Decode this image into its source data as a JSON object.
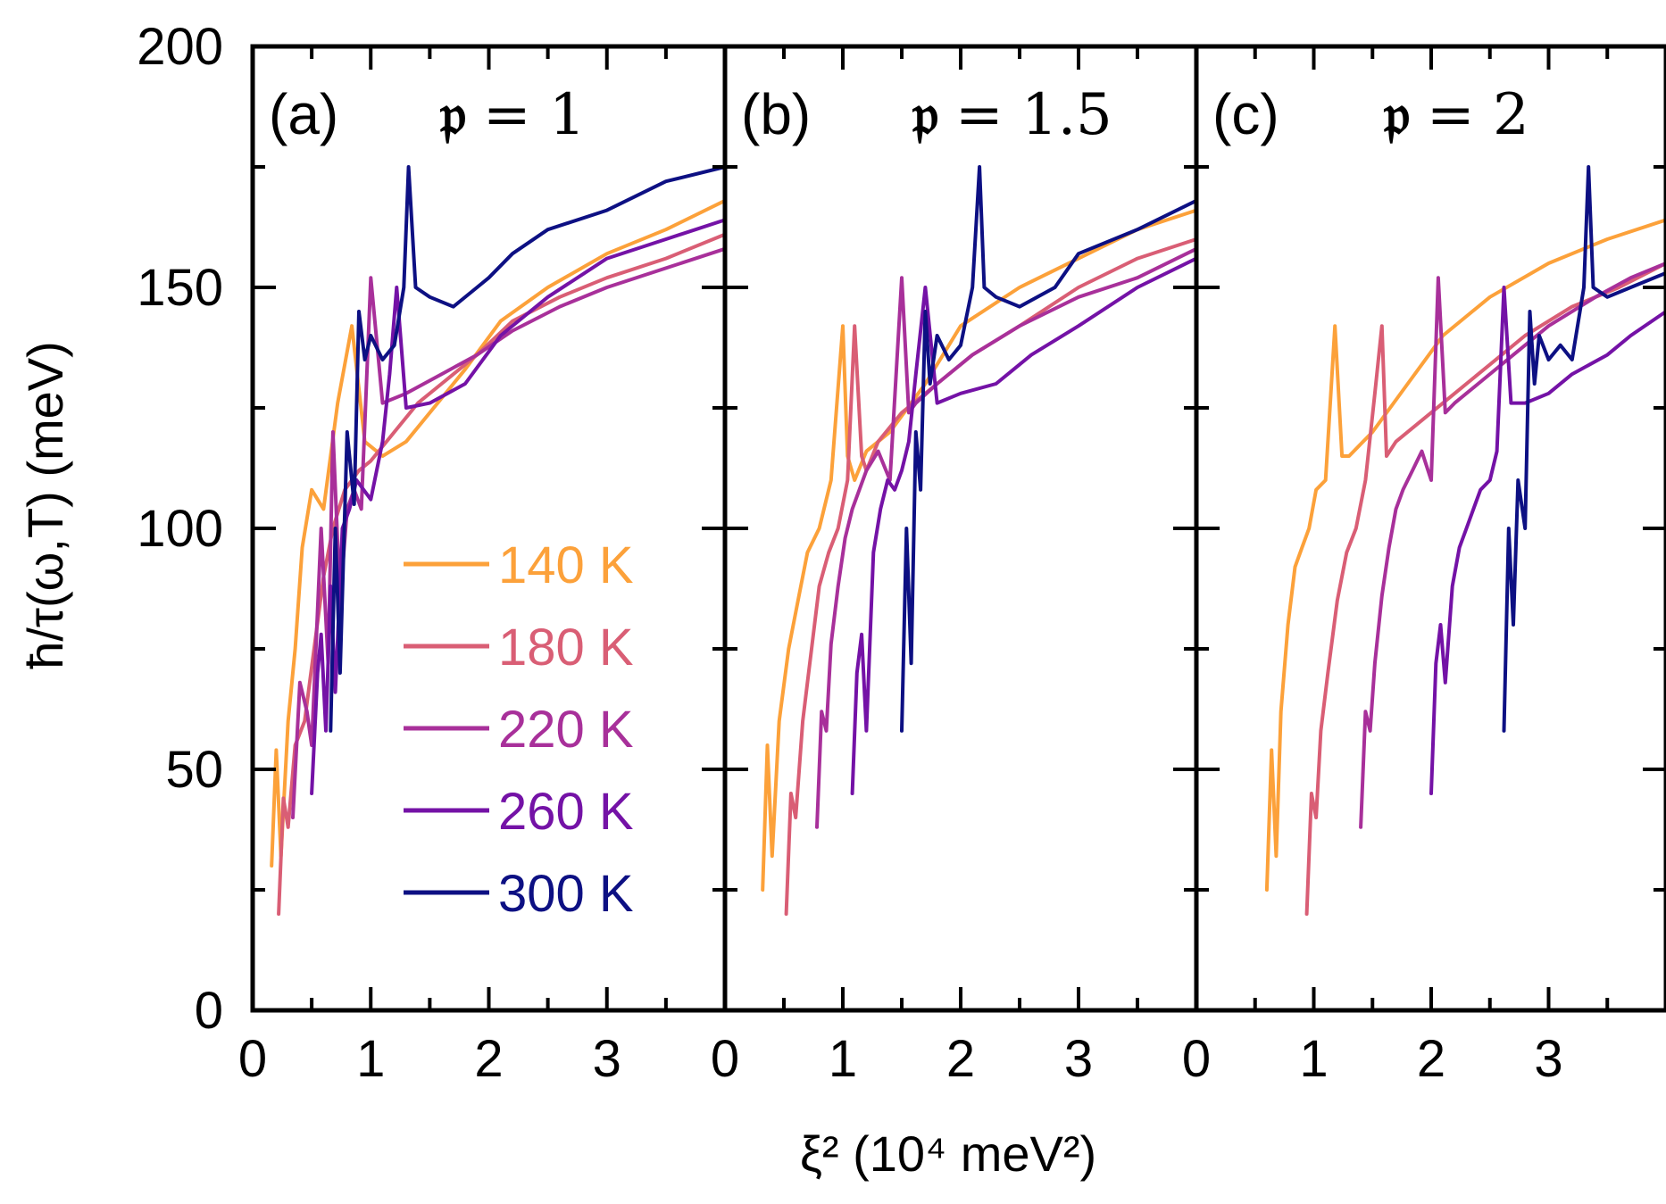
{
  "chart_data": {
    "type": "line",
    "ylabel": "ħ/τ(ω,T) (meV)",
    "xlabel": "ξ² (10⁴ meV²)",
    "ylim": [
      0,
      200
    ],
    "yticks": [
      "0",
      "50",
      "100",
      "150",
      "200"
    ],
    "xticks": [
      "0",
      "1",
      "2",
      "3"
    ],
    "xlim": [
      0,
      4
    ],
    "colors": {
      "140 K": "#fca13a",
      "180 K": "#d95e75",
      "220 K": "#a8309a",
      "260 K": "#7412a6",
      "300 K": "#0d1083"
    },
    "legend": [
      {
        "label": "140 K",
        "color": "#fca13a"
      },
      {
        "label": "180 K",
        "color": "#d95e75"
      },
      {
        "label": "220 K",
        "color": "#a8309a"
      },
      {
        "label": "260 K",
        "color": "#7412a6"
      },
      {
        "label": "300 K",
        "color": "#0d1083"
      }
    ],
    "panels": [
      {
        "label": "(a)",
        "p_symbol": "𝔭",
        "p_text": "= 1",
        "series": [
          {
            "name": "140 K",
            "x": [
              0.16,
              0.2,
              0.24,
              0.3,
              0.36,
              0.42,
              0.5,
              0.6,
              0.72,
              0.84,
              0.95,
              1.1,
              1.3,
              1.5,
              1.8,
              2.1,
              2.5,
              3.0,
              3.5,
              4.0
            ],
            "y": [
              30,
              54,
              32,
              60,
              75,
              96,
              108,
              104,
              126,
              142,
              118,
              115,
              118,
              124,
              133,
              143,
              150,
              157,
              162,
              168
            ]
          },
          {
            "name": "180 K",
            "x": [
              0.22,
              0.26,
              0.3,
              0.36,
              0.44,
              0.52,
              0.6,
              0.68,
              0.78,
              0.9,
              1.0,
              1.2,
              1.4,
              1.6,
              1.9,
              2.2,
              2.6,
              3.0,
              3.5,
              4.0
            ],
            "y": [
              20,
              44,
              38,
              55,
              60,
              75,
              90,
              100,
              108,
              112,
              114,
              120,
              126,
              130,
              136,
              143,
              148,
              152,
              156,
              161
            ]
          },
          {
            "name": "220 K",
            "x": [
              0.34,
              0.4,
              0.46,
              0.5,
              0.58,
              0.64,
              0.68,
              0.74,
              0.8,
              0.86,
              0.92,
              1.0,
              1.1,
              1.3,
              1.6,
              1.9,
              2.2,
              2.6,
              3.0,
              3.5,
              4.0
            ],
            "y": [
              40,
              68,
              62,
              55,
              100,
              72,
              120,
              85,
              104,
              108,
              104,
              152,
              126,
              128,
              132,
              136,
              141,
              146,
              150,
              154,
              158
            ]
          },
          {
            "name": "260 K",
            "x": [
              0.5,
              0.55,
              0.58,
              0.62,
              0.66,
              0.7,
              0.76,
              0.82,
              0.88,
              0.94,
              1.0,
              1.05,
              1.1,
              1.16,
              1.22,
              1.3,
              1.5,
              1.8,
              2.1,
              2.5,
              3.0,
              3.5,
              4.0
            ],
            "y": [
              45,
              70,
              78,
              58,
              88,
              66,
              100,
              104,
              110,
              108,
              106,
              112,
              118,
              132,
              150,
              125,
              126,
              130,
              140,
              148,
              156,
              160,
              164
            ]
          },
          {
            "name": "300 K",
            "x": [
              0.66,
              0.7,
              0.74,
              0.8,
              0.86,
              0.9,
              0.95,
              1.0,
              1.1,
              1.2,
              1.28,
              1.32,
              1.38,
              1.5,
              1.7,
              1.9,
              2.0,
              2.2,
              2.5,
              3.0,
              3.5,
              4.0
            ],
            "y": [
              58,
              100,
              70,
              120,
              105,
              145,
              135,
              140,
              135,
              138,
              150,
              175,
              150,
              148,
              146,
              150,
              152,
              157,
              162,
              166,
              172,
              175
            ]
          }
        ]
      },
      {
        "label": "(b)",
        "p_symbol": "𝔭",
        "p_text": "= 1.5",
        "series": [
          {
            "name": "140 K",
            "x": [
              0.32,
              0.36,
              0.4,
              0.46,
              0.54,
              0.62,
              0.7,
              0.8,
              0.9,
              1.0,
              1.04,
              1.1,
              1.2,
              1.4,
              1.7,
              2.0,
              2.5,
              3.0,
              3.5,
              4.0
            ],
            "y": [
              25,
              55,
              32,
              60,
              75,
              85,
              95,
              100,
              110,
              142,
              115,
              110,
              116,
              120,
              130,
              142,
              150,
              156,
              162,
              166
            ]
          },
          {
            "name": "180 K",
            "x": [
              0.52,
              0.56,
              0.6,
              0.66,
              0.72,
              0.8,
              0.88,
              0.96,
              1.04,
              1.1,
              1.16,
              1.2,
              1.3,
              1.5,
              1.8,
              2.1,
              2.5,
              3.0,
              3.5,
              4.0
            ],
            "y": [
              20,
              45,
              40,
              60,
              72,
              88,
              95,
              100,
              110,
              142,
              115,
              112,
              118,
              124,
              130,
              136,
              142,
              150,
              156,
              160
            ]
          },
          {
            "name": "220 K",
            "x": [
              0.78,
              0.82,
              0.86,
              0.9,
              0.96,
              1.02,
              1.08,
              1.14,
              1.2,
              1.3,
              1.4,
              1.5,
              1.56,
              1.62,
              1.8,
              2.1,
              2.5,
              3.0,
              3.5,
              4.0
            ],
            "y": [
              38,
              62,
              58,
              76,
              88,
              98,
              104,
              108,
              112,
              116,
              110,
              152,
              124,
              126,
              130,
              136,
              142,
              148,
              152,
              158
            ]
          },
          {
            "name": "260 K",
            "x": [
              1.08,
              1.12,
              1.16,
              1.2,
              1.26,
              1.32,
              1.38,
              1.44,
              1.5,
              1.56,
              1.62,
              1.7,
              1.8,
              2.0,
              2.3,
              2.6,
              3.0,
              3.5,
              4.0
            ],
            "y": [
              45,
              70,
              78,
              58,
              95,
              104,
              110,
              108,
              112,
              118,
              132,
              150,
              126,
              128,
              130,
              136,
              142,
              150,
              156
            ]
          },
          {
            "name": "300 K",
            "x": [
              1.5,
              1.54,
              1.58,
              1.62,
              1.66,
              1.7,
              1.74,
              1.8,
              1.9,
              2.0,
              2.1,
              2.16,
              2.2,
              2.3,
              2.5,
              2.8,
              3.0,
              3.5,
              4.0
            ],
            "y": [
              58,
              100,
              72,
              120,
              108,
              145,
              130,
              140,
              135,
              138,
              150,
              175,
              150,
              148,
              146,
              150,
              157,
              162,
              168
            ]
          }
        ]
      },
      {
        "label": "(c)",
        "p_symbol": "𝔭",
        "p_text": "= 2",
        "series": [
          {
            "name": "140 K",
            "x": [
              0.6,
              0.64,
              0.68,
              0.72,
              0.78,
              0.84,
              0.9,
              0.96,
              1.02,
              1.1,
              1.18,
              1.24,
              1.3,
              1.5,
              1.8,
              2.1,
              2.5,
              3.0,
              3.5,
              4.0
            ],
            "y": [
              25,
              54,
              32,
              62,
              80,
              92,
              96,
              100,
              108,
              110,
              142,
              115,
              115,
              120,
              130,
              140,
              148,
              155,
              160,
              164
            ]
          },
          {
            "name": "180 K",
            "x": [
              0.94,
              0.98,
              1.02,
              1.06,
              1.12,
              1.2,
              1.28,
              1.36,
              1.44,
              1.52,
              1.58,
              1.62,
              1.7,
              1.9,
              2.2,
              2.5,
              2.8,
              3.2,
              3.6,
              4.0
            ],
            "y": [
              20,
              45,
              40,
              58,
              70,
              85,
              95,
              100,
              110,
              128,
              142,
              115,
              118,
              122,
              128,
              134,
              140,
              146,
              150,
              155
            ]
          },
          {
            "name": "220 K",
            "x": [
              1.4,
              1.44,
              1.48,
              1.52,
              1.58,
              1.64,
              1.7,
              1.76,
              1.84,
              1.92,
              2.0,
              2.06,
              2.12,
              2.2,
              2.4,
              2.7,
              3.0,
              3.4,
              3.7,
              4.0
            ],
            "y": [
              38,
              62,
              58,
              72,
              86,
              96,
              104,
              108,
              112,
              116,
              110,
              152,
              124,
              126,
              130,
              136,
              142,
              148,
              152,
              155
            ]
          },
          {
            "name": "260 K",
            "x": [
              2.0,
              2.04,
              2.08,
              2.12,
              2.18,
              2.24,
              2.3,
              2.36,
              2.42,
              2.5,
              2.56,
              2.62,
              2.68,
              2.8,
              3.0,
              3.2,
              3.5,
              3.7,
              4.0
            ],
            "y": [
              45,
              72,
              80,
              68,
              88,
              96,
              100,
              104,
              108,
              110,
              116,
              150,
              126,
              126,
              128,
              132,
              136,
              140,
              145
            ]
          },
          {
            "name": "300 K",
            "x": [
              2.62,
              2.66,
              2.7,
              2.74,
              2.8,
              2.84,
              2.88,
              2.92,
              3.0,
              3.1,
              3.2,
              3.3,
              3.34,
              3.38,
              3.5,
              3.7,
              4.0
            ],
            "y": [
              58,
              100,
              80,
              110,
              100,
              145,
              130,
              140,
              135,
              138,
              135,
              150,
              175,
              150,
              148,
              150,
              153
            ]
          }
        ]
      }
    ]
  }
}
